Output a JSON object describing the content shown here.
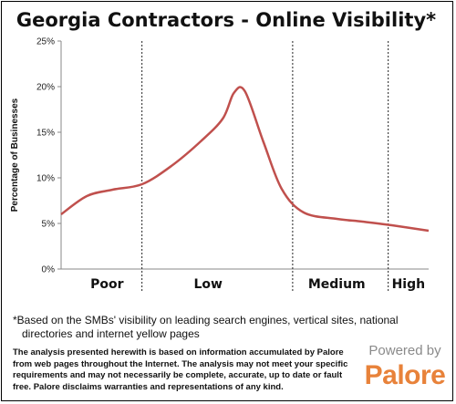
{
  "chart_data": {
    "type": "line",
    "title": "Georgia Contractors - Online Visibility*",
    "ylabel": "Percentage of Businesses",
    "xlabel": "",
    "ylim": [
      0,
      25
    ],
    "y_ticks": [
      "0%",
      "5%",
      "10%",
      "15%",
      "20%",
      "25%"
    ],
    "y_tick_values": [
      0,
      5,
      10,
      15,
      20,
      25
    ],
    "xlim": [
      0,
      100
    ],
    "categories": [
      "Poor",
      "Low",
      "Medium",
      "High"
    ],
    "category_centers": [
      12.5,
      40,
      75,
      94.5
    ],
    "dividers": [
      22,
      63,
      89
    ],
    "grid": false,
    "legend": "none",
    "series": [
      {
        "color": "#c0504d",
        "x": [
          0,
          7,
          14,
          22,
          30,
          38,
          44,
          47,
          50,
          55,
          60,
          66,
          75,
          82,
          90,
          100
        ],
        "y": [
          6,
          8,
          8.7,
          9.3,
          11.3,
          14,
          16.5,
          19.3,
          19.5,
          14,
          8.8,
          6.2,
          5.5,
          5.2,
          4.8,
          4.2
        ]
      }
    ]
  },
  "footnote": {
    "line1": "*Based on the SMBs' visibility on leading search engines, vertical sites, national",
    "line2": "directories and internet yellow pages"
  },
  "disclaimer": "The analysis presented herewith is based on information accumulated by Palore from web pages throughout the Internet. The analysis may not meet your specific requirements and may not necessarily be complete, accurate, up to date or fault free. Palore disclaims warranties and representations of any kind.",
  "brand": {
    "powered_by": "Powered by",
    "name": "Palore",
    "color": "#e8823a"
  }
}
